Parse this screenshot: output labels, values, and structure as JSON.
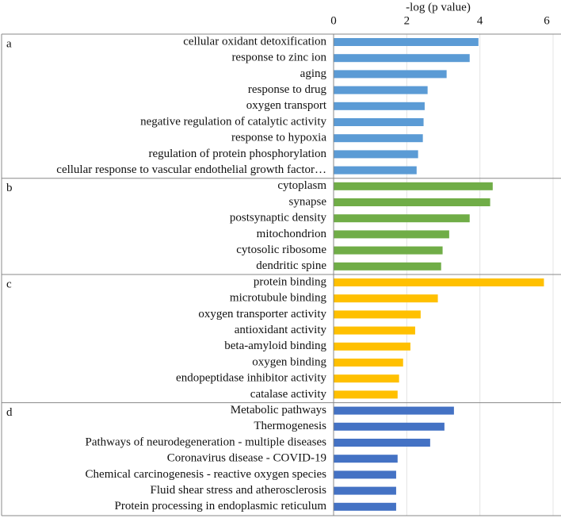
{
  "chart_data": {
    "type": "bar",
    "x_label": "-log (p value)",
    "xlim": [
      0,
      6
    ],
    "xticks": [
      0,
      2,
      4,
      6
    ],
    "grid": true,
    "series": [
      {
        "name": "a",
        "color": "#5b9bd5",
        "categories": [
          "cellular oxidant detoxification",
          "response to zinc ion",
          "aging",
          "response to drug",
          "oxygen transport",
          "negative regulation of catalytic activity",
          "response to hypoxia",
          "regulation of protein phosphorylation",
          "cellular response to vascular endothelial growth factor…"
        ],
        "values": [
          3.96,
          3.72,
          3.09,
          2.57,
          2.49,
          2.46,
          2.44,
          2.31,
          2.27
        ]
      },
      {
        "name": "b",
        "color": "#70ad47",
        "categories": [
          "cytoplasm",
          "synapse",
          "postsynaptic density",
          "mitochondrion",
          "cytosolic ribosome",
          "dendritic spine"
        ],
        "values": [
          4.35,
          4.28,
          3.72,
          3.16,
          2.98,
          2.94
        ]
      },
      {
        "name": "c",
        "color": "#ffc000",
        "categories": [
          "protein binding",
          "microtubule binding",
          "oxygen transporter activity",
          "antioxidant activity",
          "beta-amyloid binding",
          "oxygen binding",
          "endopeptidase inhibitor activity",
          "catalase activity"
        ],
        "values": [
          5.75,
          2.85,
          2.38,
          2.23,
          2.1,
          1.9,
          1.79,
          1.75
        ]
      },
      {
        "name": "d",
        "color": "#4472c4",
        "categories": [
          "Metabolic pathways",
          "Thermogenesis",
          "Pathways of neurodegeneration - multiple diseases",
          "Coronavirus disease - COVID-19",
          "Chemical carcinogenesis - reactive oxygen species",
          "Fluid shear stress and atherosclerosis",
          "Protein processing in endoplasmic reticulum"
        ],
        "values": [
          3.29,
          3.03,
          2.64,
          1.75,
          1.71,
          1.71,
          1.71
        ]
      }
    ]
  }
}
